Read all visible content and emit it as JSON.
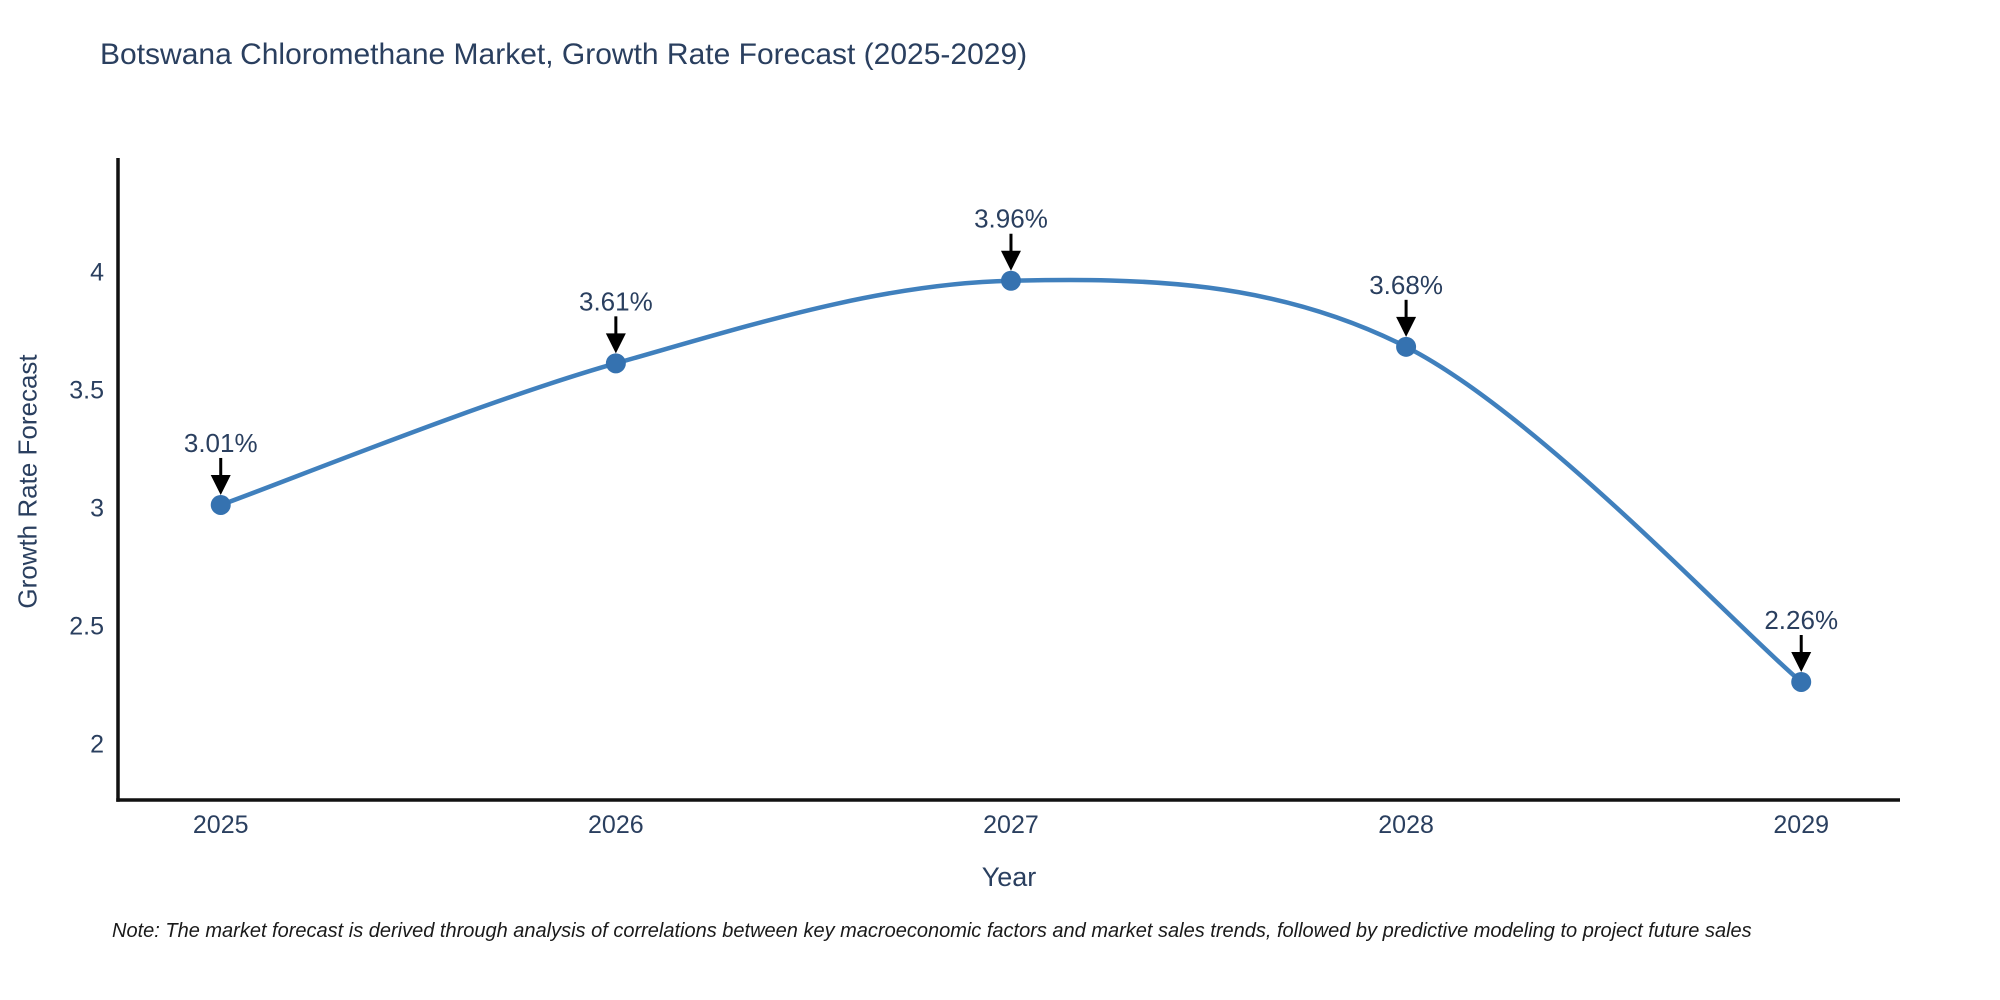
{
  "title": "Botswana Chloromethane Market, Growth Rate Forecast (2025-2029)",
  "note": "Note: The market forecast is derived through analysis of correlations between key macroeconomic factors and market sales trends, followed by predictive modeling to project future sales",
  "chart_data": {
    "type": "line",
    "title": "Botswana Chloromethane Market, Growth Rate Forecast (2025-2029)",
    "xlabel": "Year",
    "ylabel": "Growth Rate Forecast",
    "x": [
      2025,
      2026,
      2027,
      2028,
      2029
    ],
    "y": [
      3.01,
      3.61,
      3.96,
      3.68,
      2.26
    ],
    "point_labels": [
      "3.01%",
      "3.61%",
      "3.96%",
      "3.68%",
      "2.26%"
    ],
    "xticks": [
      "2025",
      "2026",
      "2027",
      "2028",
      "2029"
    ],
    "yticks": [
      2,
      2.5,
      3,
      3.5,
      4
    ],
    "xlim": [
      2024.74,
      2029.25
    ],
    "ylim": [
      1.76,
      4.48
    ],
    "grid": false,
    "legend": false,
    "line_shape": "spline",
    "colors": {
      "line": "#4080bd",
      "marker": "#3572b0",
      "text": "#2a3f5f",
      "axis": "#111111",
      "annotation_arrow": "#000000"
    }
  }
}
